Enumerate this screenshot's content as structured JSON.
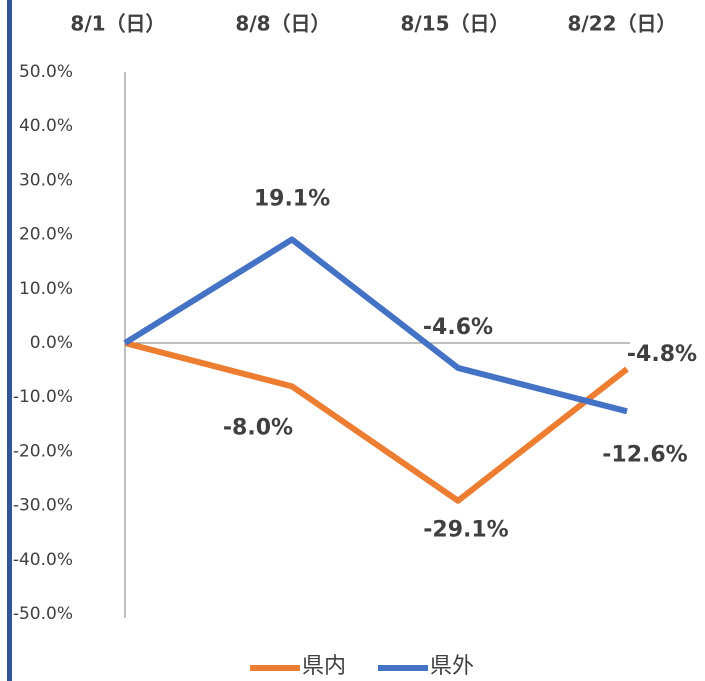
{
  "chart_data": {
    "type": "line",
    "categories": [
      "8/1（日）",
      "8/8（日）",
      "8/15（日）",
      "8/22（日）"
    ],
    "series": [
      {
        "name": "県内",
        "color": "#ed7d31",
        "values": [
          0,
          -8.0,
          -29.1,
          -4.8
        ],
        "value_labels": [
          null,
          "-8.0%",
          "-29.1%",
          "-4.8%"
        ]
      },
      {
        "name": "県外",
        "color": "#4472c4",
        "values": [
          0,
          19.1,
          -4.6,
          -12.6
        ],
        "value_labels": [
          null,
          "19.1%",
          "-4.6%",
          "-12.6%"
        ]
      }
    ],
    "ylim": [
      -50,
      50
    ],
    "yticks": [
      {
        "value": 50,
        "label": "50.0%"
      },
      {
        "value": 40,
        "label": "40.0%"
      },
      {
        "value": 30,
        "label": "30.0%"
      },
      {
        "value": 20,
        "label": "20.0%"
      },
      {
        "value": 10,
        "label": "10.0%"
      },
      {
        "value": 0,
        "label": "0.0%"
      },
      {
        "value": -10,
        "label": "-10.0%"
      },
      {
        "value": -20,
        "label": "-20.0%"
      },
      {
        "value": -30,
        "label": "-30.0%"
      },
      {
        "value": -40,
        "label": "-40.0%"
      },
      {
        "value": -50,
        "label": "-50.0%"
      }
    ],
    "grid": false
  }
}
